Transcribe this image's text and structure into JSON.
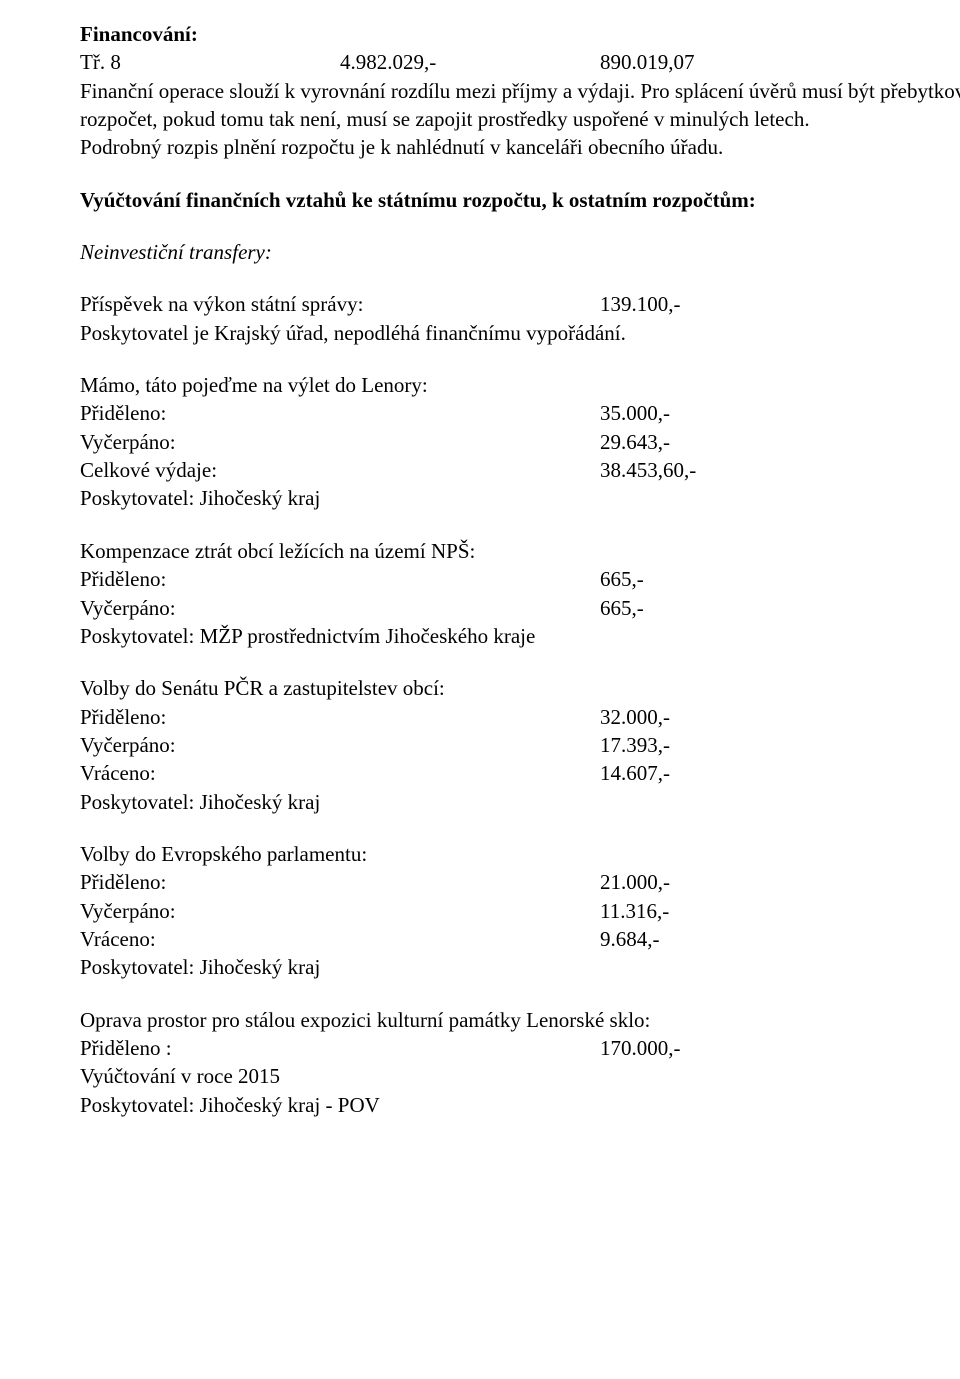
{
  "financing": {
    "heading": "Financování:",
    "tr_label": "Tř. 8",
    "tr_val1": "4.982.029,-",
    "tr_val2": "890.019,07",
    "p1": "Finanční operace slouží k vyrovnání rozdílu mezi příjmy a výdaji. Pro splácení úvěrů musí být přebytkový rozpočet, pokud tomu tak není, musí se zapojit prostředky uspořené v minulých letech.",
    "p2": "Podrobný rozpis plnění rozpočtu je k nahlédnutí v kanceláři obecního úřadu."
  },
  "settlement_heading": "Vyúčtování finančních vztahů ke státnímu rozpočtu, k ostatním rozpočtům:",
  "noninvest_heading": "Neinvestiční transfery:",
  "prispevek": {
    "label": "Příspěvek na výkon státní správy:",
    "value": "139.100,-",
    "note": "Poskytovatel je Krajský úřad, nepodléhá finančnímu vypořádání."
  },
  "mamo": {
    "title": "Mámo, táto pojeďme na výlet do Lenory:",
    "rows": [
      [
        "Přiděleno:",
        "35.000,-"
      ],
      [
        "Vyčerpáno:",
        "29.643,-"
      ],
      [
        "Celkové výdaje:",
        "38.453,60,-"
      ]
    ],
    "provider": "Poskytovatel: Jihočeský kraj"
  },
  "kompenzace": {
    "title": "Kompenzace ztrát obcí ležících na území NPŠ:",
    "rows": [
      [
        "Přiděleno:",
        "665,-"
      ],
      [
        "Vyčerpáno:",
        "665,-"
      ]
    ],
    "provider": "Poskytovatel:  MŽP prostřednictvím Jihočeského kraje"
  },
  "volby_senat": {
    "title": "Volby do Senátu PČR a zastupitelstev obcí:",
    "rows": [
      [
        "Přiděleno:",
        "32.000,-"
      ],
      [
        "Vyčerpáno:",
        "17.393,-"
      ],
      [
        "Vráceno:",
        "14.607,-"
      ]
    ],
    "provider": "Poskytovatel: Jihočeský kraj"
  },
  "volby_ep": {
    "title": "Volby do Evropského parlamentu:",
    "rows": [
      [
        "Přiděleno:",
        "21.000,-"
      ],
      [
        "Vyčerpáno:",
        "11.316,-"
      ],
      [
        "Vráceno:",
        "9.684,-"
      ]
    ],
    "provider": "Poskytovatel:  Jihočeský kraj"
  },
  "oprava": {
    "title": "Oprava prostor pro stálou expozici kulturní památky Lenorské sklo:",
    "rows": [
      [
        "Přiděleno :",
        "170.000,-"
      ]
    ],
    "note": "Vyúčtování v roce 2015",
    "provider": "Poskytovatel: Jihočeský kraj - POV"
  }
}
